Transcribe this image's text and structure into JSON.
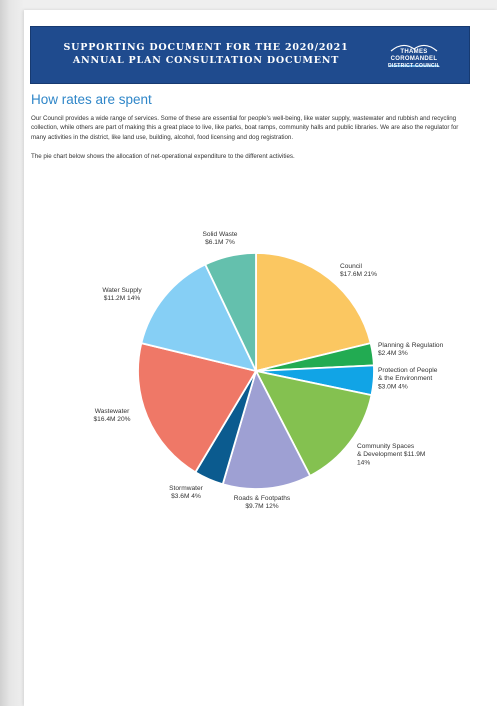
{
  "banner": {
    "line1": "SUPPORTING DOCUMENT FOR THE 2020/2021",
    "line2": "ANNUAL PLAN CONSULTATION DOCUMENT",
    "logo_line1": "THAMES",
    "logo_line2": "COROMANDEL",
    "logo_line3": "DISTRICT COUNCIL"
  },
  "section_title": "How rates are spent",
  "paragraph1": "Our Council provides a wide range of services. Some of these are essential for people's well-being, like water supply, wastewater and rubbish and recycling collection, while others are part of making this a great place to live, like parks, boat ramps, community halls and public libraries. We are also the regulator for many activities in the district, like land use, building, alcohol, food licensing and dog registration.",
  "paragraph2": "The pie chart below shows the allocation of net-operational expenditure to the different activities.",
  "colors": {
    "banner": "#1f4b8e",
    "title": "#2f86c8"
  },
  "chart_data": {
    "type": "pie",
    "title": "",
    "slices": [
      {
        "name": "Council",
        "amount_label": "$17.6M",
        "pct_label": "21%",
        "value": 21,
        "color": "#fbc761",
        "label_lines": [
          "Council",
          "$17.6M 21%"
        ]
      },
      {
        "name": "Planning & Regulation",
        "amount_label": "$2.4M",
        "pct_label": "3%",
        "value": 3,
        "color": "#22ab52",
        "label_lines": [
          "Planning & Regulation",
          "$2.4M 3%"
        ]
      },
      {
        "name": "Protection of People & the Environment",
        "amount_label": "$3.0M",
        "pct_label": "4%",
        "value": 4,
        "color": "#11a4e6",
        "label_lines": [
          "Protection of People",
          "& the Environment",
          "$3.0M 4%"
        ]
      },
      {
        "name": "Community Spaces & Development",
        "amount_label": "$11.9M",
        "pct_label": "14%",
        "value": 14,
        "color": "#84c150",
        "label_lines": [
          "Community Spaces",
          "& Development $11.9M",
          "14%"
        ]
      },
      {
        "name": "Roads & Footpaths",
        "amount_label": "$9.7M",
        "pct_label": "12%",
        "value": 12,
        "color": "#9ea0d3",
        "label_lines": [
          "Roads & Footpaths",
          "$9.7M 12%"
        ]
      },
      {
        "name": "Stormwater",
        "amount_label": "$3.6M",
        "pct_label": "4%",
        "value": 4,
        "color": "#0b5b8f",
        "label_lines": [
          "Stormwater",
          "$3.6M 4%"
        ]
      },
      {
        "name": "Wastewater",
        "amount_label": "$16.4M",
        "pct_label": "20%",
        "value": 20,
        "color": "#ef7867",
        "label_lines": [
          "Wastewater",
          "$16.4M 20%"
        ]
      },
      {
        "name": "Water Supply",
        "amount_label": "$11.2M",
        "pct_label": "14%",
        "value": 14,
        "color": "#86cff5",
        "label_lines": [
          "Water Supply",
          "$11.2M 14%"
        ]
      },
      {
        "name": "Solid Waste",
        "amount_label": "$6.1M",
        "pct_label": "7%",
        "value": 7,
        "color": "#64c0ad",
        "label_lines": [
          "Solid Waste",
          "$6.1M 7%"
        ]
      }
    ]
  }
}
